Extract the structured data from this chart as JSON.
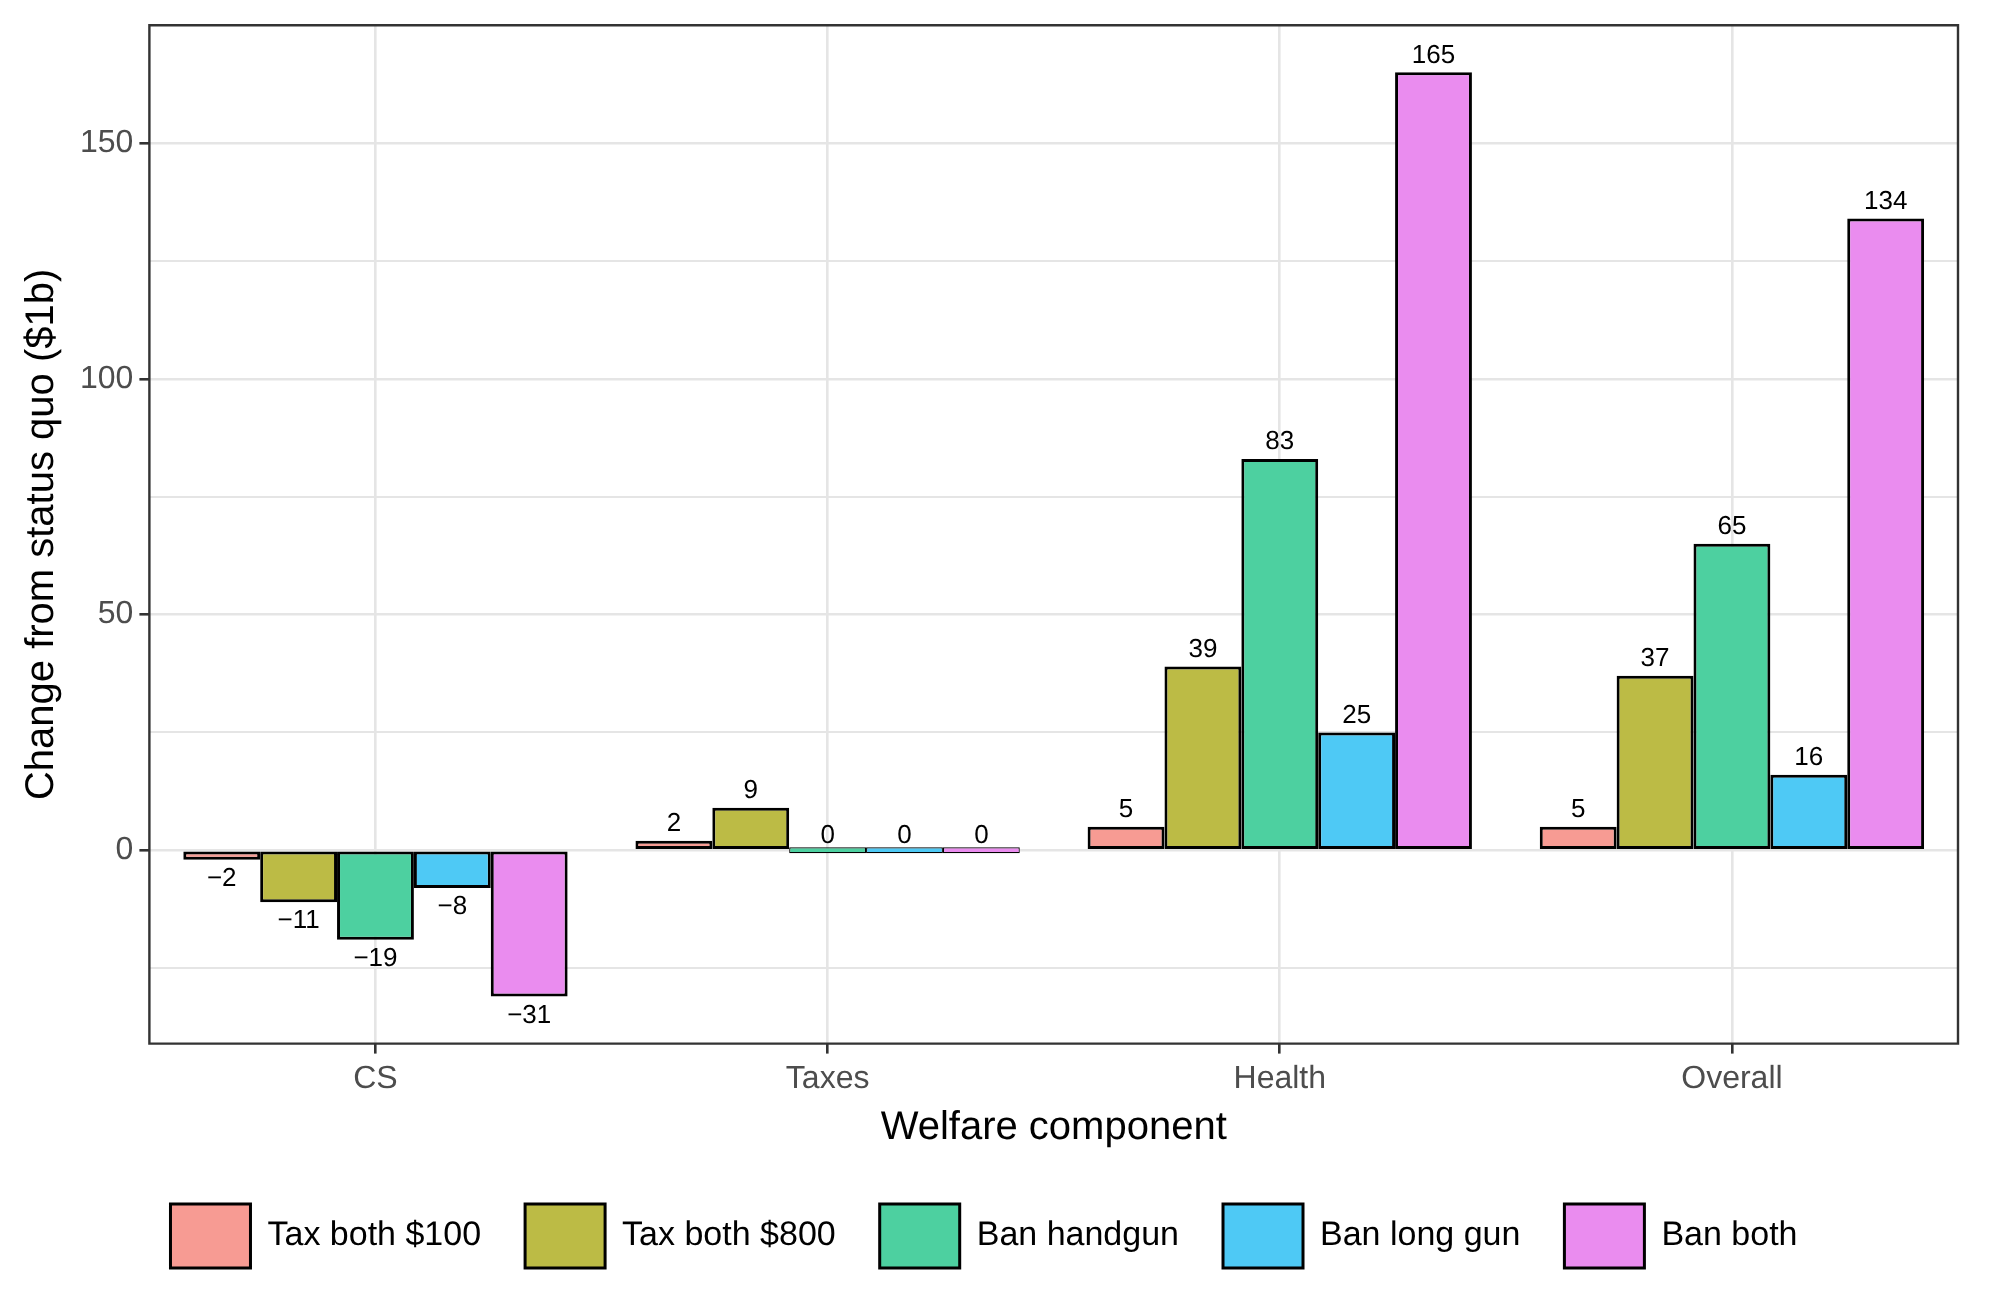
{
  "chart_data": {
    "type": "bar",
    "xlabel": "Welfare component",
    "ylabel": "Change from status quo ($1b)",
    "categories": [
      "CS",
      "Taxes",
      "Health",
      "Overall"
    ],
    "series": [
      {
        "name": "Tax both $100",
        "color": "#f79b93",
        "values": [
          -2,
          2,
          5,
          5
        ],
        "value_labels": [
          "−2",
          "2",
          "5",
          "5"
        ]
      },
      {
        "name": "Tax both $800",
        "color": "#bcbb45",
        "values": [
          -11,
          9,
          39,
          37
        ],
        "value_labels": [
          "−11",
          "9",
          "39",
          "37"
        ]
      },
      {
        "name": "Ban handgun",
        "color": "#4dd0a0",
        "values": [
          -19,
          0,
          83,
          65
        ],
        "value_labels": [
          "−19",
          "0",
          "83",
          "65"
        ]
      },
      {
        "name": "Ban long gun",
        "color": "#4ec9f5",
        "values": [
          -8,
          0,
          25,
          16
        ],
        "value_labels": [
          "−8",
          "0",
          "25",
          "16"
        ]
      },
      {
        "name": "Ban both",
        "color": "#ea8cef",
        "values": [
          -31,
          0,
          165,
          134
        ],
        "value_labels": [
          "−31",
          "0",
          "165",
          "134"
        ]
      }
    ],
    "ylim": [
      -41,
      175
    ],
    "yticks": [
      {
        "value": -25,
        "label": null
      },
      0,
      {
        "value": 25,
        "label": null
      },
      50,
      {
        "value": 75,
        "label": null
      },
      100,
      {
        "value": 125,
        "label": null
      },
      150
    ],
    "grid": true,
    "legend": "bottom"
  }
}
